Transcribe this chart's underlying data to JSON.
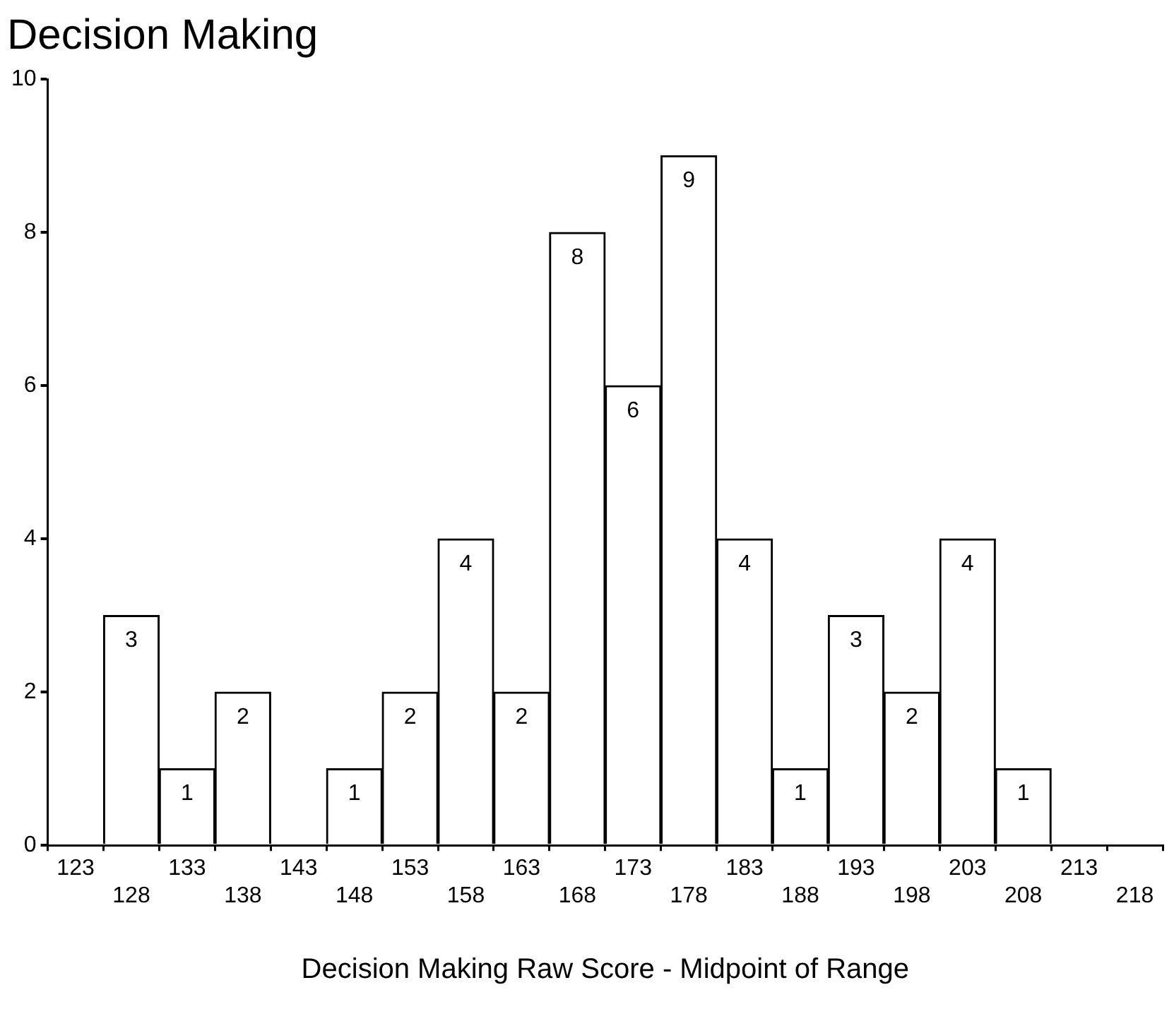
{
  "chart_data": {
    "type": "bar",
    "title": "Decision Making",
    "xlabel": "Decision Making Raw Score - Midpoint of Range",
    "categories": [
      "123",
      "128",
      "133",
      "138",
      "143",
      "148",
      "153",
      "158",
      "163",
      "168",
      "173",
      "178",
      "183",
      "188",
      "193",
      "198",
      "203",
      "208",
      "213",
      "218"
    ],
    "values": [
      0,
      3,
      1,
      2,
      0,
      1,
      2,
      4,
      2,
      8,
      6,
      9,
      4,
      1,
      3,
      2,
      4,
      1,
      0,
      0
    ],
    "value_labels": [
      null,
      "3",
      "1",
      "2",
      null,
      "1",
      "2",
      "4",
      "2",
      "8",
      "6",
      "9",
      "4",
      "1",
      "3",
      "2",
      "4",
      "1",
      null,
      null
    ],
    "color": "#ffffff",
    "ylim": [
      0,
      10
    ],
    "yticks": [
      0,
      2,
      4,
      6,
      8,
      10
    ],
    "grid": false,
    "legend": false
  }
}
